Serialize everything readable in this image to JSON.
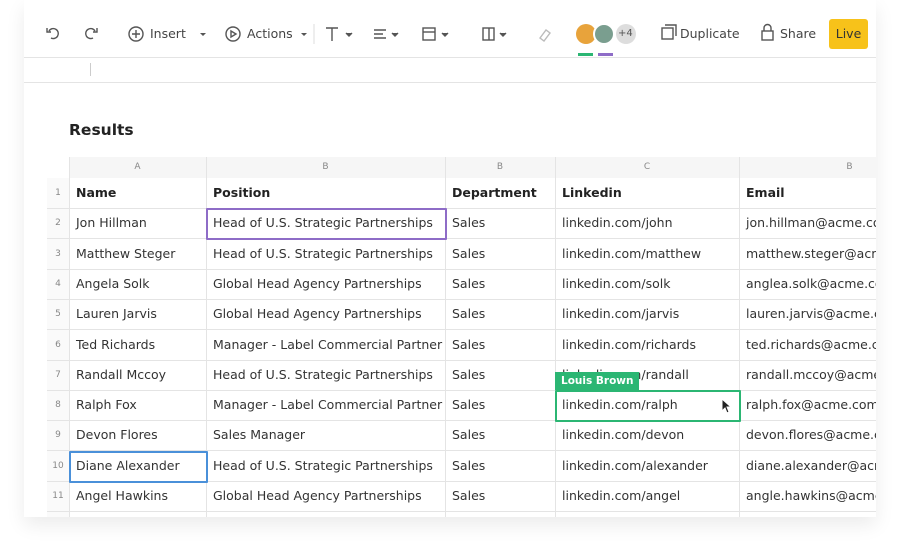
{
  "toolbar": {
    "insert": "Insert",
    "actions": "Actions",
    "collaborators_more": "+4",
    "duplicate": "Duplicate",
    "share": "Share",
    "live": "Live"
  },
  "sheet": {
    "title": "Results",
    "column_letters": [
      "A",
      "B",
      "B",
      "C",
      "B"
    ],
    "row_numbers": [
      1,
      2,
      3,
      4,
      5,
      6,
      7,
      8,
      9,
      10,
      11
    ],
    "header": [
      "Name",
      "Position",
      "Department",
      "Linkedin",
      "Email"
    ],
    "rows": [
      [
        "Jon Hillman",
        "Head of U.S. Strategic Partnerships",
        "Sales",
        "linkedin.com/john",
        "jon.hillman@acme.com"
      ],
      [
        "Matthew Steger",
        "Head of U.S. Strategic Partnerships",
        "Sales",
        "linkedin.com/matthew",
        "matthew.steger@acme.com"
      ],
      [
        "Angela Solk",
        "Global Head Agency Partnerships",
        "Sales",
        "linkedin.com/solk",
        "anglea.solk@acme.com"
      ],
      [
        "Lauren Jarvis",
        "Global Head Agency Partnerships",
        "Sales",
        "linkedin.com/jarvis",
        "lauren.jarvis@acme.com"
      ],
      [
        "Ted Richards",
        "Manager - Label Commercial Partner",
        "Sales",
        "linkedin.com/richards",
        "ted.richards@acme.com"
      ],
      [
        "Randall Mccoy",
        "Head of U.S. Strategic Partnerships",
        "Sales",
        "linkedin.com/randall",
        "randall.mccoy@acme.com"
      ],
      [
        "Ralph Fox",
        "Manager - Label Commercial Partner",
        "Sales",
        "linkedin.com/ralph",
        "ralph.fox@acme.com"
      ],
      [
        "Devon Flores",
        "Sales Manager",
        "Sales",
        "linkedin.com/devon",
        "devon.flores@acme.com"
      ],
      [
        "Diane Alexander",
        "Head of U.S. Strategic Partnerships",
        "Sales",
        "linkedin.com/alexander",
        "diane.alexander@acme.com"
      ],
      [
        "Angel Hawkins",
        "Global Head Agency Partnerships",
        "Sales",
        "linkedin.com/angel",
        "angle.hawkins@acme.com"
      ]
    ],
    "cursor_label": "Louis Brown"
  }
}
